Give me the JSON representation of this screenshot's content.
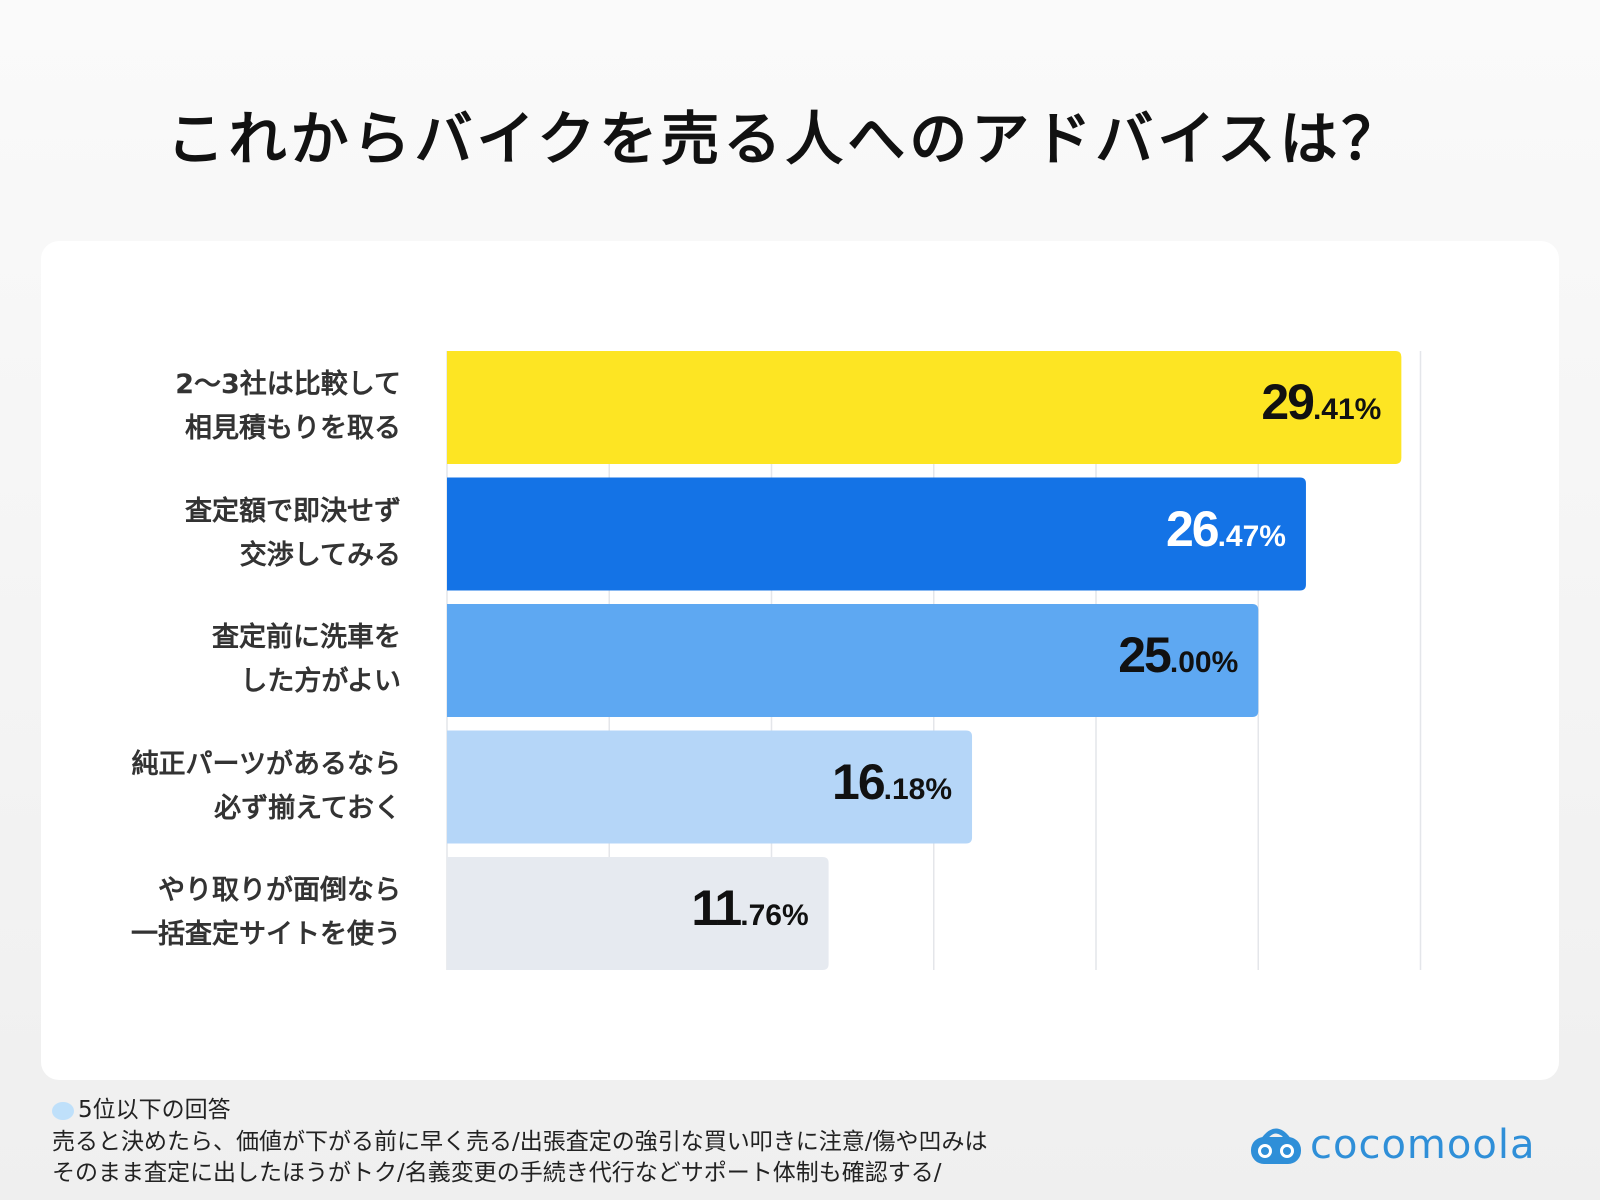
{
  "title": "これからバイクを売る人へのアドバイスは？",
  "chart_data": {
    "type": "bar",
    "orientation": "horizontal",
    "title": "これからバイクを売る人へのアドバイスは？",
    "categories": [
      [
        "2〜3社は比較して",
        "相見積もりを取る"
      ],
      [
        "査定額で即決せず",
        "交渉してみる"
      ],
      [
        "査定前に洗車を",
        "した方がよい"
      ],
      [
        "純正パーツがあるなら",
        "必ず揃えておく"
      ],
      [
        "やり取りが面倒なら",
        "一括査定サイトを使う"
      ]
    ],
    "values": [
      29.41,
      26.47,
      25.0,
      16.18,
      11.76
    ],
    "value_labels": [
      {
        "int": "29",
        "dec": ".41%"
      },
      {
        "int": "26",
        "dec": ".47%"
      },
      {
        "int": "25",
        "dec": ".00%"
      },
      {
        "int": "16",
        "dec": ".18%"
      },
      {
        "int": "11",
        "dec": ".76%"
      }
    ],
    "colors": [
      "#fde523",
      "#1473e6",
      "#5ea8f2",
      "#b5d6f8",
      "#e6eaf0"
    ],
    "label_colors": [
      "#111111",
      "#ffffff",
      "#111111",
      "#111111",
      "#111111"
    ],
    "xlim": [
      0,
      30
    ],
    "grid_step": 5,
    "grid": true
  },
  "footer": {
    "heading": "5位以下の回答",
    "lines": [
      "売ると決めたら、価値が下がる前に早く売る/出張査定の強引な買い叩きに注意/傷や凹みは",
      "そのまま査定に出したほうがトク/名義変更の手続き代行などサポート体制も確認する/"
    ]
  },
  "logo": {
    "text": "cocomoola",
    "color": "#2f8fd8"
  }
}
